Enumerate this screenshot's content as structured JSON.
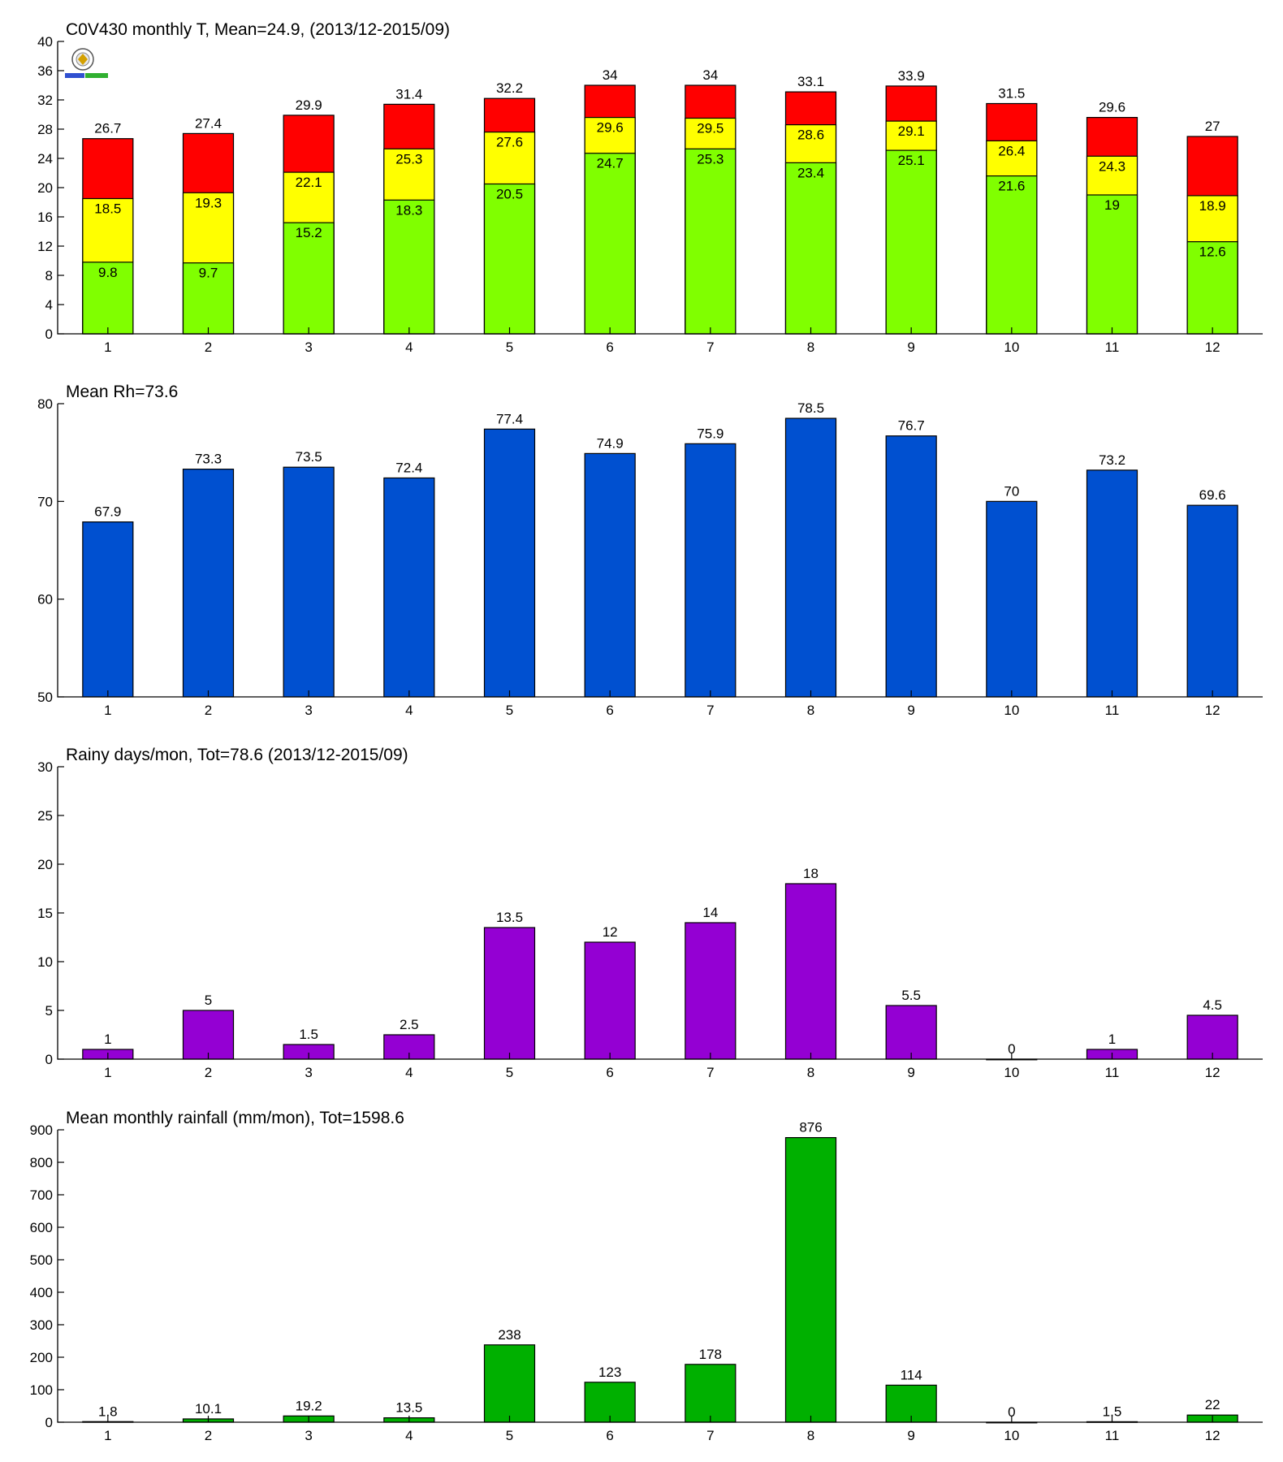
{
  "chart_data": [
    {
      "type": "bar",
      "stacked_levels": true,
      "title": "C0V430 monthly T, Mean=24.9, (2013/12-2015/09)",
      "categories": [
        "1",
        "2",
        "3",
        "4",
        "5",
        "6",
        "7",
        "8",
        "9",
        "10",
        "11",
        "12"
      ],
      "ylim": [
        0,
        40
      ],
      "yticks": [
        0,
        4,
        8,
        12,
        16,
        20,
        24,
        28,
        32,
        36,
        40
      ],
      "grid": false,
      "logo": true,
      "series": [
        {
          "color": "#80ff00",
          "values": [
            9.8,
            9.7,
            15.2,
            18.3,
            20.5,
            24.7,
            25.3,
            23.4,
            25.1,
            21.6,
            19,
            12.6
          ]
        },
        {
          "color": "#ffff00",
          "values": [
            18.5,
            19.3,
            22.1,
            25.3,
            27.6,
            29.6,
            29.5,
            28.6,
            29.1,
            26.4,
            24.3,
            18.9
          ]
        },
        {
          "color": "#ff0000",
          "values": [
            26.7,
            27.4,
            29.9,
            31.4,
            32.2,
            34,
            34,
            33.1,
            33.9,
            31.5,
            29.6,
            27
          ]
        }
      ],
      "value_labels": [
        [
          "9.8",
          "9.7",
          "15.2",
          "18.3",
          "20.5",
          "24.7",
          "25.3",
          "23.4",
          "25.1",
          "21.6",
          "19",
          "12.6"
        ],
        [
          "18.5",
          "19.3",
          "22.1",
          "25.3",
          "27.6",
          "29.6",
          "29.5",
          "28.6",
          "29.1",
          "26.4",
          "24.3",
          "18.9"
        ],
        [
          "26.7",
          "27.4",
          "29.9",
          "31.4",
          "32.2",
          "34",
          "34",
          "33.1",
          "33.9",
          "31.5",
          "29.6",
          "27"
        ]
      ]
    },
    {
      "type": "bar",
      "title": "Mean Rh=73.6",
      "categories": [
        "1",
        "2",
        "3",
        "4",
        "5",
        "6",
        "7",
        "8",
        "9",
        "10",
        "11",
        "12"
      ],
      "ylim": [
        50,
        80
      ],
      "yticks": [
        50,
        60,
        70,
        80
      ],
      "grid": false,
      "color": "#0050d0",
      "values": [
        67.9,
        73.3,
        73.5,
        72.4,
        77.4,
        74.9,
        75.9,
        78.5,
        76.7,
        70,
        73.2,
        69.6
      ],
      "value_labels": [
        "67.9",
        "73.3",
        "73.5",
        "72.4",
        "77.4",
        "74.9",
        "75.9",
        "78.5",
        "76.7",
        "70",
        "73.2",
        "69.6"
      ]
    },
    {
      "type": "bar",
      "title": "Rainy days/mon, Tot=78.6 (2013/12-2015/09)",
      "categories": [
        "1",
        "2",
        "3",
        "4",
        "5",
        "6",
        "7",
        "8",
        "9",
        "10",
        "11",
        "12"
      ],
      "ylim": [
        0,
        30
      ],
      "yticks": [
        0,
        5,
        10,
        15,
        20,
        25,
        30
      ],
      "grid": false,
      "color": "#9400d3",
      "values": [
        1,
        5,
        1.5,
        2.5,
        13.5,
        12,
        14,
        18,
        5.5,
        0,
        1,
        4.5
      ],
      "value_labels": [
        "1",
        "5",
        "1.5",
        "2.5",
        "13.5",
        "12",
        "14",
        "18",
        "5.5",
        "0",
        "1",
        "4.5"
      ]
    },
    {
      "type": "bar",
      "title": "Mean monthly rainfall (mm/mon), Tot=1598.6",
      "categories": [
        "1",
        "2",
        "3",
        "4",
        "5",
        "6",
        "7",
        "8",
        "9",
        "10",
        "11",
        "12"
      ],
      "ylim": [
        0,
        900
      ],
      "yticks": [
        0,
        100,
        200,
        300,
        400,
        500,
        600,
        700,
        800,
        900
      ],
      "grid": false,
      "color": "#00b000",
      "values": [
        1.8,
        10.1,
        19.2,
        13.5,
        238,
        123,
        178,
        876,
        114,
        0,
        1.5,
        22
      ],
      "value_labels": [
        "1.8",
        "10.1",
        "19.2",
        "13.5",
        "238",
        "123",
        "178",
        "876",
        "114",
        "0",
        "1.5",
        "22"
      ]
    }
  ]
}
